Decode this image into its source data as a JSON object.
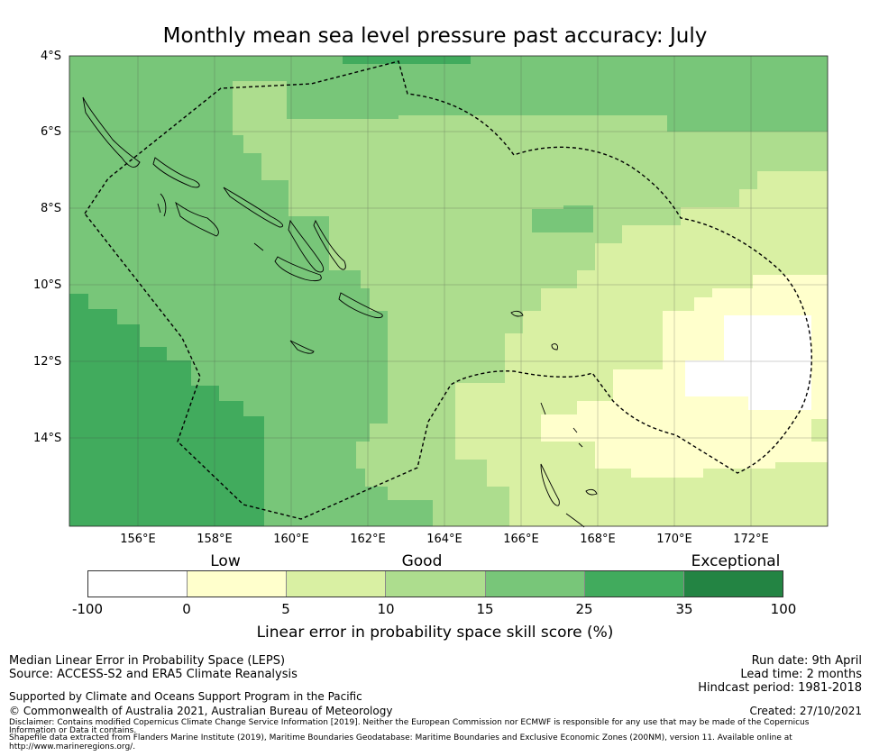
{
  "title": "Monthly mean sea level pressure past accuracy: July",
  "map": {
    "lat_labels": [
      "4°S",
      "6°S",
      "8°S",
      "10°S",
      "12°S",
      "14°S"
    ],
    "lon_labels": [
      "156°E",
      "158°E",
      "160°E",
      "162°E",
      "164°E",
      "166°E",
      "168°E",
      "170°E",
      "172°E"
    ],
    "region": "Solomon Islands EEZ"
  },
  "legend": {
    "categories": [
      "Low",
      "Good",
      "Exceptional"
    ],
    "ticks": [
      "-100",
      "0",
      "5",
      "10",
      "15",
      "25",
      "35",
      "100"
    ],
    "colors": [
      "#ffffff",
      "#ffffcc",
      "#d9f0a3",
      "#addd8e",
      "#78c679",
      "#41ab5d",
      "#238443"
    ],
    "title": "Linear error in probability space skill score (%)"
  },
  "footer": {
    "line1": "Median Linear Error in Probability Space (LEPS)",
    "line2": "Source: ACCESS-S2 and ERA5 Climate Reanalysis",
    "run_date": "Run date: 9th April",
    "lead_time": "Lead time: 2 months",
    "hindcast": "Hindcast period: 1981-2018",
    "supported": "Supported by Climate and Oceans Support Program in the Pacific",
    "copyright": "© Commonwealth of Australia 2021, Australian Bureau of Meteorology",
    "created": "Created: 27/10/2021",
    "disclaimer1": "Disclaimer: Contains modified Copernicus Climate Change Service Information [2019]. Neither the European Commission nor ECMWF is responsible for any use that may be made of the Copernicus",
    "disclaimer2": "Information or Data it contains.",
    "disclaimer3": "Shapefile data extracted from Flanders Marine Institute (2019), Maritime Boundaries Geodatabase: Maritime Boundaries and Exclusive Economic Zones (200NM), version 11. Available online at",
    "disclaimer4": "http://www.marineregions.org/."
  }
}
